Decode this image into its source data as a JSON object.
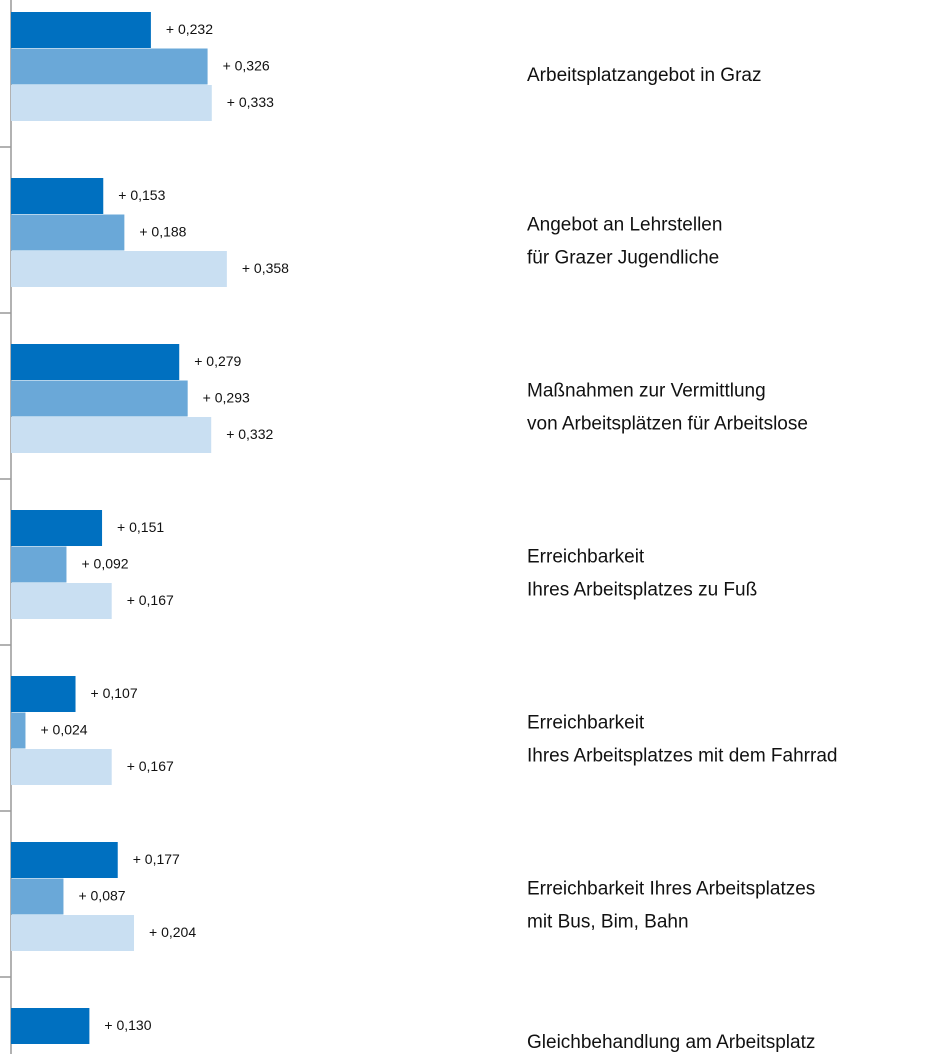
{
  "chart_data": {
    "type": "bar",
    "orientation": "horizontal",
    "categories": [
      [
        "Arbeitsplatzangebot in Graz"
      ],
      [
        "Angebot an Lehrstellen",
        "für Grazer Jugendliche"
      ],
      [
        "Maßnahmen zur Vermittlung",
        "von Arbeitsplätzen für Arbeitslose"
      ],
      [
        "Erreichbarkeit",
        "Ihres Arbeitsplatzes zu Fuß"
      ],
      [
        "Erreichbarkeit",
        "Ihres Arbeitsplatzes mit dem Fahrrad"
      ],
      [
        "Erreichbarkeit Ihres Arbeitsplatzes",
        "mit Bus, Bim, Bahn"
      ],
      [
        "Gleichbehandlung am Arbeitsplatz"
      ]
    ],
    "series": [
      {
        "color": "#0070c0",
        "values": [
          0.232,
          0.153,
          0.279,
          0.151,
          0.107,
          0.177,
          0.13
        ],
        "value_labels": [
          "+ 0,232",
          "+ 0,153",
          "+ 0,279",
          "+ 0,151",
          "+ 0,107",
          "+ 0,177",
          "+ 0,130"
        ]
      },
      {
        "color": "#6aa8d8",
        "values": [
          0.326,
          0.188,
          0.293,
          0.092,
          0.024,
          0.087,
          null
        ],
        "value_labels": [
          "+ 0,326",
          "+ 0,188",
          "+ 0,293",
          "+ 0,092",
          "+ 0,024",
          "+ 0,087",
          null
        ]
      },
      {
        "color": "#c9dff2",
        "values": [
          0.333,
          0.358,
          0.332,
          0.167,
          0.167,
          0.204,
          null
        ],
        "value_labels": [
          "+ 0,333",
          "+ 0,358",
          "+ 0,332",
          "+ 0,167",
          "+ 0,167",
          "+ 0,204",
          null
        ]
      }
    ]
  }
}
